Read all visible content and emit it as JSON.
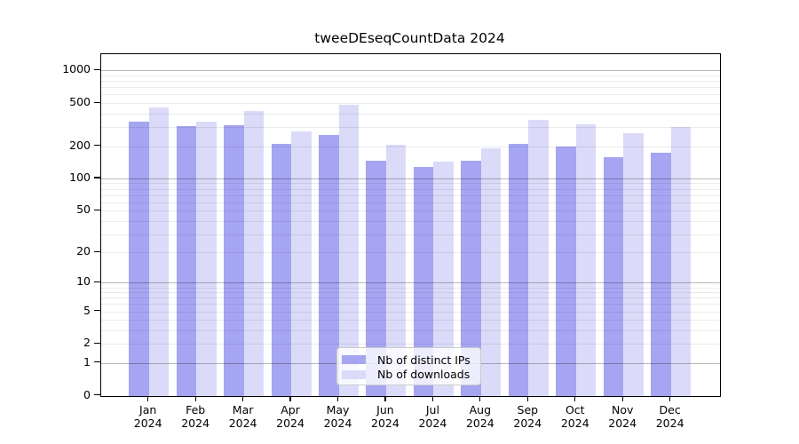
{
  "title": "tweeDEseqCountData 2024",
  "chart_data": {
    "type": "bar",
    "title": "tweeDEseqCountData 2024",
    "categories": [
      "Jan",
      "Feb",
      "Mar",
      "Apr",
      "May",
      "Jun",
      "Jul",
      "Aug",
      "Sep",
      "Oct",
      "Nov",
      "Dec"
    ],
    "x_tick_year": "2024",
    "series": [
      {
        "name": "Nb of distinct IPs",
        "color": "#a5a5f2",
        "values": [
          335,
          305,
          310,
          210,
          255,
          146,
          129,
          145,
          208,
          198,
          159,
          172
        ]
      },
      {
        "name": "Nb of downloads",
        "color": "#dbdbf9",
        "values": [
          460,
          340,
          420,
          275,
          485,
          205,
          143,
          192,
          352,
          320,
          261,
          298
        ]
      }
    ],
    "y_axis": {
      "scale": "log1p",
      "ticks": [
        0,
        1,
        2,
        5,
        10,
        20,
        50,
        100,
        200,
        500,
        1000
      ],
      "tick_labels": [
        "0",
        "1",
        "2",
        "5",
        "10",
        "20",
        "50",
        "100",
        "200",
        "500",
        "1000"
      ],
      "range": [
        0,
        1420
      ]
    },
    "grid": {
      "enabled": true,
      "major_at": [
        1,
        10,
        100,
        1000
      ]
    },
    "legend": {
      "position": "bottom-center",
      "entries": [
        "Nb of distinct IPs",
        "Nb of downloads"
      ]
    },
    "colors": {
      "background": "#ffffff",
      "spine": "#000000",
      "grid_major": "#b6b6b6",
      "grid_minor": "#e9e9e9"
    }
  }
}
